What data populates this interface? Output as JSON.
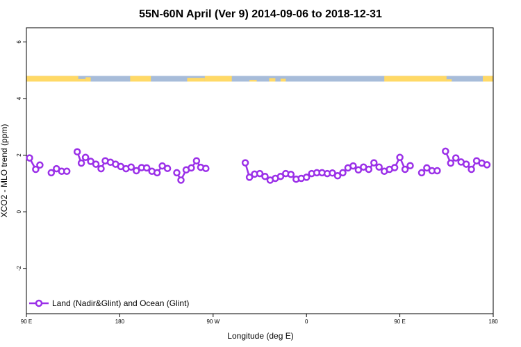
{
  "chart_data": {
    "type": "line",
    "title": "55N-60N April (Ver 9)   2014-09-06 to 2018-12-31",
    "xlabel": "Longitude (deg E)",
    "ylabel": "XCO2 - MLO trend (ppm)",
    "xlim": [
      90,
      540
    ],
    "ylim": [
      -3.6,
      6.5
    ],
    "x_ticks": [
      {
        "value": 90,
        "label": "90 E"
      },
      {
        "value": 180,
        "label": "180"
      },
      {
        "value": 270,
        "label": "90 W"
      },
      {
        "value": 360,
        "label": "0"
      },
      {
        "value": 450,
        "label": "90 E"
      },
      {
        "value": 540,
        "label": "180"
      }
    ],
    "y_ticks": [
      {
        "value": -2,
        "label": "-2"
      },
      {
        "value": 0,
        "label": "0"
      },
      {
        "value": 2,
        "label": "2"
      },
      {
        "value": 4,
        "label": "4"
      },
      {
        "value": 6,
        "label": "6"
      }
    ],
    "grid": false,
    "legend_position": "bottom-left",
    "land_ocean_strip": {
      "y_range": [
        4.6,
        4.8
      ],
      "land_color": "#FFD966",
      "ocean_color": "#A7BCD9"
    },
    "series": [
      {
        "name": "Land (Nadir&Glint) and Ocean (Glint)",
        "color": "#9B30E8",
        "segments": [
          [
            [
              93,
              1.9
            ],
            [
              99,
              1.5
            ],
            [
              103,
              1.65
            ]
          ],
          [
            [
              114,
              1.38
            ],
            [
              119,
              1.52
            ],
            [
              124,
              1.43
            ],
            [
              129,
              1.43
            ]
          ],
          [
            [
              139,
              2.12
            ],
            [
              143,
              1.72
            ],
            [
              147,
              1.92
            ],
            [
              152,
              1.78
            ],
            [
              157,
              1.68
            ],
            [
              162,
              1.52
            ],
            [
              166,
              1.8
            ],
            [
              171,
              1.75
            ],
            [
              176,
              1.68
            ],
            [
              181,
              1.6
            ],
            [
              186,
              1.52
            ],
            [
              191,
              1.58
            ],
            [
              196,
              1.45
            ],
            [
              201,
              1.56
            ],
            [
              206,
              1.55
            ],
            [
              211,
              1.43
            ],
            [
              216,
              1.38
            ],
            [
              221,
              1.62
            ],
            [
              226,
              1.53
            ]
          ],
          [
            [
              235,
              1.38
            ],
            [
              239,
              1.12
            ],
            [
              244,
              1.48
            ],
            [
              249,
              1.55
            ],
            [
              254,
              1.8
            ],
            [
              258,
              1.57
            ],
            [
              263,
              1.53
            ]
          ],
          [
            [
              301,
              1.73
            ],
            [
              305,
              1.22
            ],
            [
              310,
              1.33
            ],
            [
              315,
              1.35
            ],
            [
              320,
              1.25
            ],
            [
              325,
              1.12
            ],
            [
              330,
              1.18
            ],
            [
              335,
              1.25
            ],
            [
              340,
              1.35
            ],
            [
              345,
              1.32
            ],
            [
              350,
              1.15
            ],
            [
              355,
              1.18
            ],
            [
              360,
              1.22
            ],
            [
              365,
              1.35
            ],
            [
              370,
              1.38
            ],
            [
              375,
              1.38
            ],
            [
              380,
              1.35
            ],
            [
              385,
              1.37
            ],
            [
              390,
              1.27
            ],
            [
              395,
              1.38
            ],
            [
              400,
              1.55
            ],
            [
              405,
              1.62
            ],
            [
              410,
              1.48
            ],
            [
              415,
              1.58
            ],
            [
              420,
              1.5
            ],
            [
              425,
              1.73
            ],
            [
              430,
              1.58
            ],
            [
              435,
              1.43
            ],
            [
              440,
              1.5
            ],
            [
              445,
              1.56
            ],
            [
              450,
              1.92
            ],
            [
              455,
              1.5
            ],
            [
              460,
              1.63
            ]
          ],
          [
            [
              471,
              1.38
            ],
            [
              476,
              1.55
            ],
            [
              481,
              1.45
            ],
            [
              486,
              1.45
            ]
          ],
          [
            [
              494,
              2.14
            ],
            [
              499,
              1.72
            ],
            [
              504,
              1.9
            ],
            [
              509,
              1.76
            ],
            [
              514,
              1.68
            ],
            [
              519,
              1.5
            ],
            [
              524,
              1.8
            ],
            [
              529,
              1.72
            ],
            [
              534,
              1.66
            ]
          ]
        ]
      }
    ]
  }
}
